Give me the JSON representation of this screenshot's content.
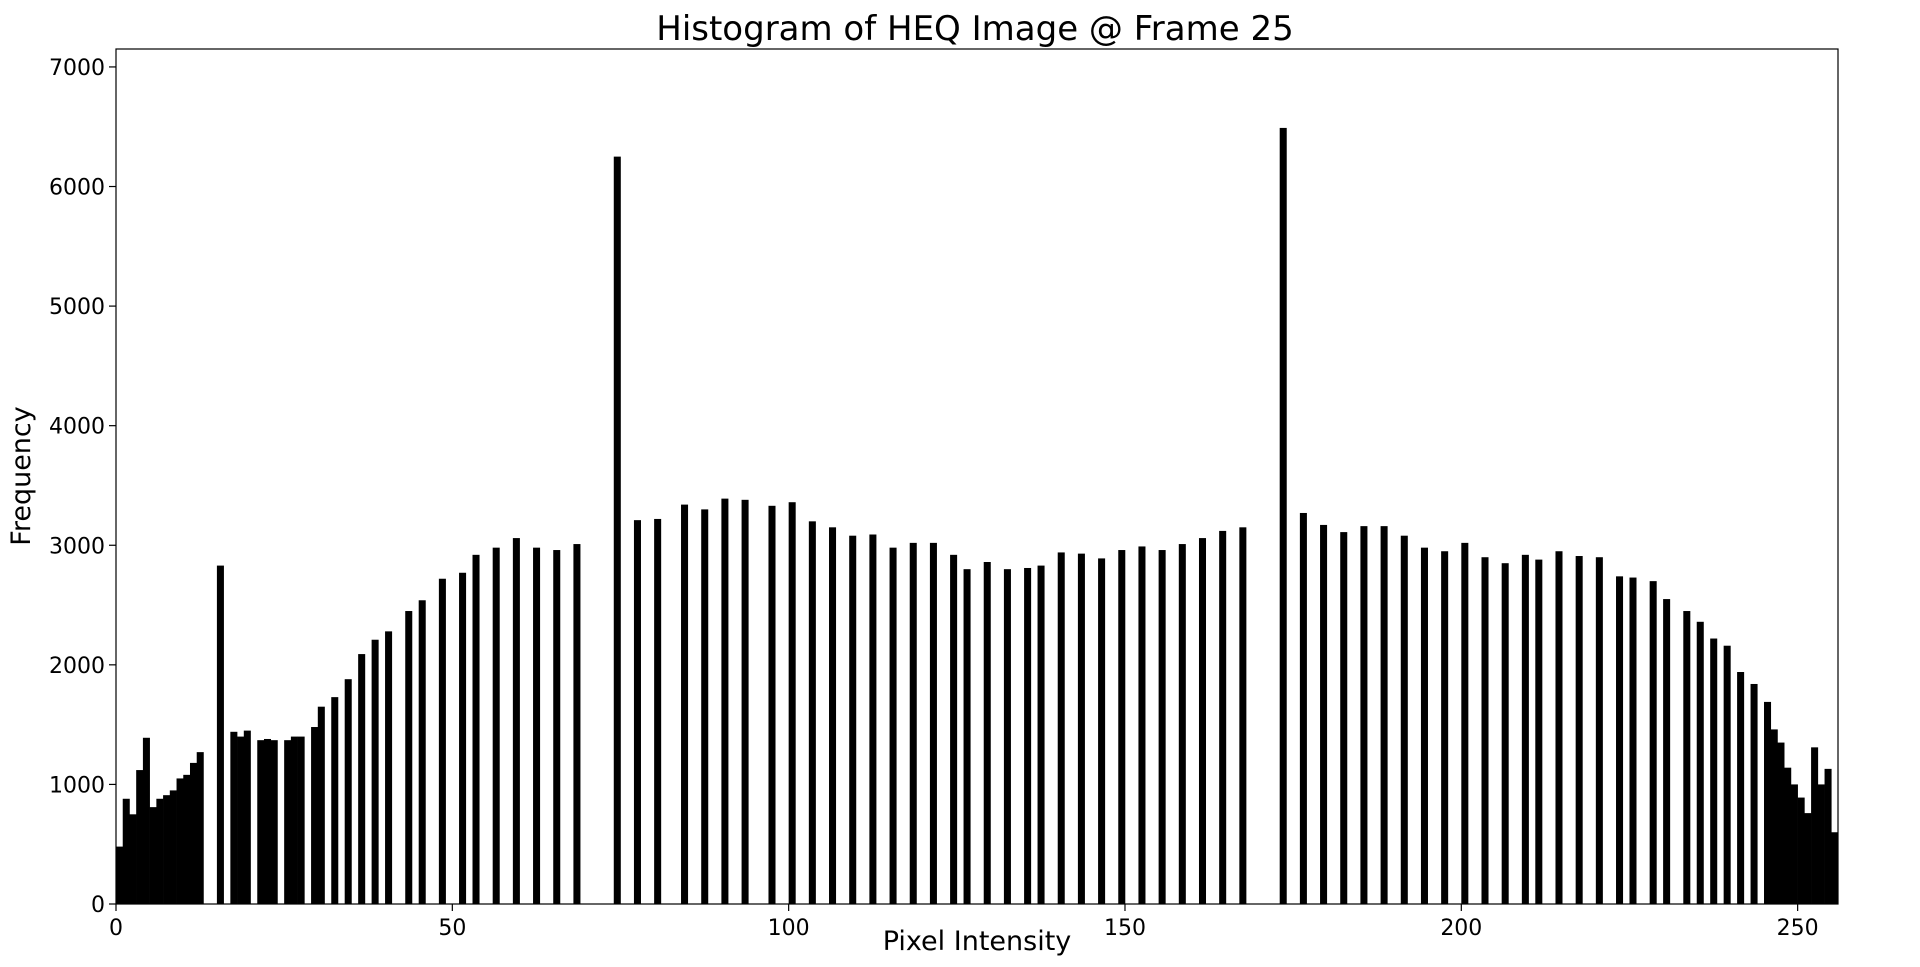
{
  "chart_data": {
    "type": "bar",
    "title": "Histogram of HEQ Image @ Frame 25",
    "xlabel": "Pixel Intensity",
    "ylabel": "Frequency",
    "xlim": [
      0,
      256
    ],
    "ylim": [
      0,
      7150
    ],
    "xticks": [
      0,
      50,
      100,
      150,
      200,
      250
    ],
    "yticks": [
      0,
      1000,
      2000,
      3000,
      4000,
      5000,
      6000,
      7000
    ],
    "grid": false,
    "bar_color": "#000000",
    "bins": [
      [
        0,
        480
      ],
      [
        1,
        880
      ],
      [
        2,
        750
      ],
      [
        3,
        1120
      ],
      [
        4,
        1390
      ],
      [
        5,
        810
      ],
      [
        6,
        880
      ],
      [
        7,
        910
      ],
      [
        8,
        950
      ],
      [
        9,
        1050
      ],
      [
        10,
        1080
      ],
      [
        11,
        1180
      ],
      [
        12,
        1270
      ],
      [
        15,
        2830
      ],
      [
        17,
        1440
      ],
      [
        18,
        1400
      ],
      [
        19,
        1450
      ],
      [
        21,
        1370
      ],
      [
        22,
        1380
      ],
      [
        23,
        1370
      ],
      [
        25,
        1370
      ],
      [
        26,
        1400
      ],
      [
        27,
        1400
      ],
      [
        29,
        1480
      ],
      [
        30,
        1650
      ],
      [
        32,
        1730
      ],
      [
        34,
        1880
      ],
      [
        36,
        2090
      ],
      [
        38,
        2210
      ],
      [
        40,
        2280
      ],
      [
        43,
        2450
      ],
      [
        45,
        2540
      ],
      [
        48,
        2720
      ],
      [
        51,
        2770
      ],
      [
        53,
        2920
      ],
      [
        56,
        2980
      ],
      [
        59,
        3060
      ],
      [
        62,
        2980
      ],
      [
        65,
        2960
      ],
      [
        68,
        3010
      ],
      [
        74,
        6250
      ],
      [
        77,
        3210
      ],
      [
        80,
        3220
      ],
      [
        84,
        3340
      ],
      [
        87,
        3300
      ],
      [
        90,
        3390
      ],
      [
        93,
        3380
      ],
      [
        97,
        3330
      ],
      [
        100,
        3360
      ],
      [
        103,
        3200
      ],
      [
        106,
        3150
      ],
      [
        109,
        3080
      ],
      [
        112,
        3090
      ],
      [
        115,
        2980
      ],
      [
        118,
        3020
      ],
      [
        121,
        3020
      ],
      [
        124,
        2920
      ],
      [
        126,
        2800
      ],
      [
        129,
        2860
      ],
      [
        132,
        2800
      ],
      [
        135,
        2810
      ],
      [
        137,
        2830
      ],
      [
        140,
        2940
      ],
      [
        143,
        2930
      ],
      [
        146,
        2890
      ],
      [
        149,
        2960
      ],
      [
        152,
        2990
      ],
      [
        155,
        2960
      ],
      [
        158,
        3010
      ],
      [
        161,
        3060
      ],
      [
        164,
        3120
      ],
      [
        167,
        3150
      ],
      [
        173,
        6490
      ],
      [
        176,
        3270
      ],
      [
        179,
        3170
      ],
      [
        182,
        3110
      ],
      [
        185,
        3160
      ],
      [
        188,
        3160
      ],
      [
        191,
        3080
      ],
      [
        194,
        2980
      ],
      [
        197,
        2950
      ],
      [
        200,
        3020
      ],
      [
        203,
        2900
      ],
      [
        206,
        2850
      ],
      [
        209,
        2920
      ],
      [
        211,
        2880
      ],
      [
        214,
        2950
      ],
      [
        217,
        2910
      ],
      [
        220,
        2900
      ],
      [
        223,
        2740
      ],
      [
        225,
        2730
      ],
      [
        228,
        2700
      ],
      [
        230,
        2550
      ],
      [
        233,
        2450
      ],
      [
        235,
        2360
      ],
      [
        237,
        2220
      ],
      [
        239,
        2160
      ],
      [
        241,
        1940
      ],
      [
        243,
        1840
      ],
      [
        245,
        1690
      ],
      [
        246,
        1460
      ],
      [
        247,
        1350
      ],
      [
        248,
        1140
      ],
      [
        249,
        1000
      ],
      [
        250,
        890
      ],
      [
        251,
        760
      ],
      [
        252,
        1310
      ],
      [
        253,
        1000
      ],
      [
        254,
        1130
      ],
      [
        255,
        600
      ]
    ]
  }
}
